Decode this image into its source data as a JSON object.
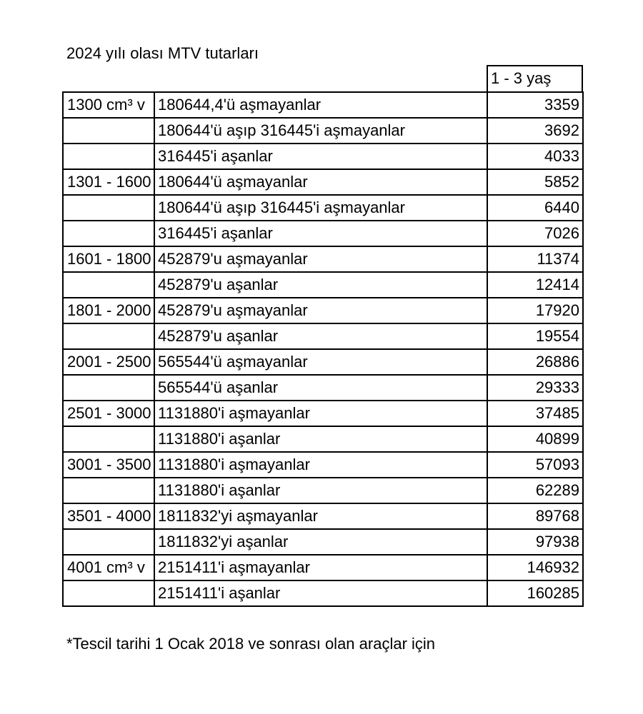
{
  "title": "2024 yılı olası MTV tutarları",
  "column_header": "1 - 3 yaş",
  "rows": [
    {
      "group": "1300 cm³ v",
      "range": "180644,4'ü aşmayanlar",
      "value": "3359"
    },
    {
      "group": "",
      "range": "180644'ü aşıp 316445'i aşmayanlar",
      "value": "3692"
    },
    {
      "group": "",
      "range": "316445'i aşanlar",
      "value": "4033"
    },
    {
      "group": "1301 - 1600",
      "range": "180644'ü aşmayanlar",
      "value": "5852"
    },
    {
      "group": "",
      "range": "180644'ü aşıp 316445'i aşmayanlar",
      "value": "6440"
    },
    {
      "group": "",
      "range": "316445'i aşanlar",
      "value": "7026"
    },
    {
      "group": "1601 - 1800",
      "range": "452879'u aşmayanlar",
      "value": "11374"
    },
    {
      "group": "",
      "range": "452879'u aşanlar",
      "value": "12414"
    },
    {
      "group": "1801 - 2000",
      "range": "452879'u aşmayanlar",
      "value": "17920"
    },
    {
      "group": "",
      "range": "452879'u aşanlar",
      "value": "19554"
    },
    {
      "group": "2001 - 2500",
      "range": "565544'ü aşmayanlar",
      "value": "26886"
    },
    {
      "group": "",
      "range": "565544'ü aşanlar",
      "value": "29333"
    },
    {
      "group": "2501 - 3000",
      "range": "1131880'i aşmayanlar",
      "value": "37485"
    },
    {
      "group": "",
      "range": "1131880'i aşanlar",
      "value": "40899"
    },
    {
      "group": "3001 - 3500",
      "range": "1131880'i aşmayanlar",
      "value": "57093"
    },
    {
      "group": "",
      "range": "1131880'i aşanlar",
      "value": "62289"
    },
    {
      "group": "3501 - 4000",
      "range": "1811832'yi aşmayanlar",
      "value": "89768"
    },
    {
      "group": "",
      "range": "1811832'yi aşanlar",
      "value": "97938"
    },
    {
      "group": "4001 cm³ v",
      "range": "2151411'i aşmayanlar",
      "value": "146932"
    },
    {
      "group": "",
      "range": "2151411'i aşanlar",
      "value": "160285"
    }
  ],
  "footnote": "*Tescil tarihi 1 Ocak 2018 ve sonrası olan araçlar için"
}
